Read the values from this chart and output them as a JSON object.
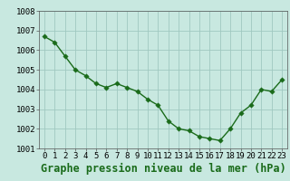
{
  "x": [
    0,
    1,
    2,
    3,
    4,
    5,
    6,
    7,
    8,
    9,
    10,
    11,
    12,
    13,
    14,
    15,
    16,
    17,
    18,
    19,
    20,
    21,
    22,
    23
  ],
  "y": [
    1006.7,
    1006.4,
    1005.7,
    1005.0,
    1004.7,
    1004.3,
    1004.1,
    1004.3,
    1004.1,
    1003.9,
    1003.5,
    1003.2,
    1002.4,
    1002.0,
    1001.9,
    1001.6,
    1001.5,
    1001.4,
    1002.0,
    1002.8,
    1003.2,
    1004.0,
    1003.9,
    1004.5
  ],
  "line_color": "#1a6b1a",
  "marker_color": "#1a6b1a",
  "bg_color": "#c8e8e0",
  "grid_color": "#a0c8c0",
  "xlabel": "Graphe pression niveau de la mer (hPa)",
  "ylim": [
    1001.0,
    1008.0
  ],
  "xlim": [
    -0.5,
    23.5
  ],
  "yticks": [
    1001,
    1002,
    1003,
    1004,
    1005,
    1006,
    1007,
    1008
  ],
  "xtick_labels": [
    "0",
    "1",
    "2",
    "3",
    "4",
    "5",
    "6",
    "7",
    "8",
    "9",
    "10",
    "11",
    "12",
    "13",
    "14",
    "15",
    "16",
    "17",
    "18",
    "19",
    "20",
    "21",
    "22",
    "23"
  ],
  "tick_fontsize": 6.5,
  "xlabel_fontsize": 8.5,
  "marker_size": 2.8,
  "line_width": 1.0
}
